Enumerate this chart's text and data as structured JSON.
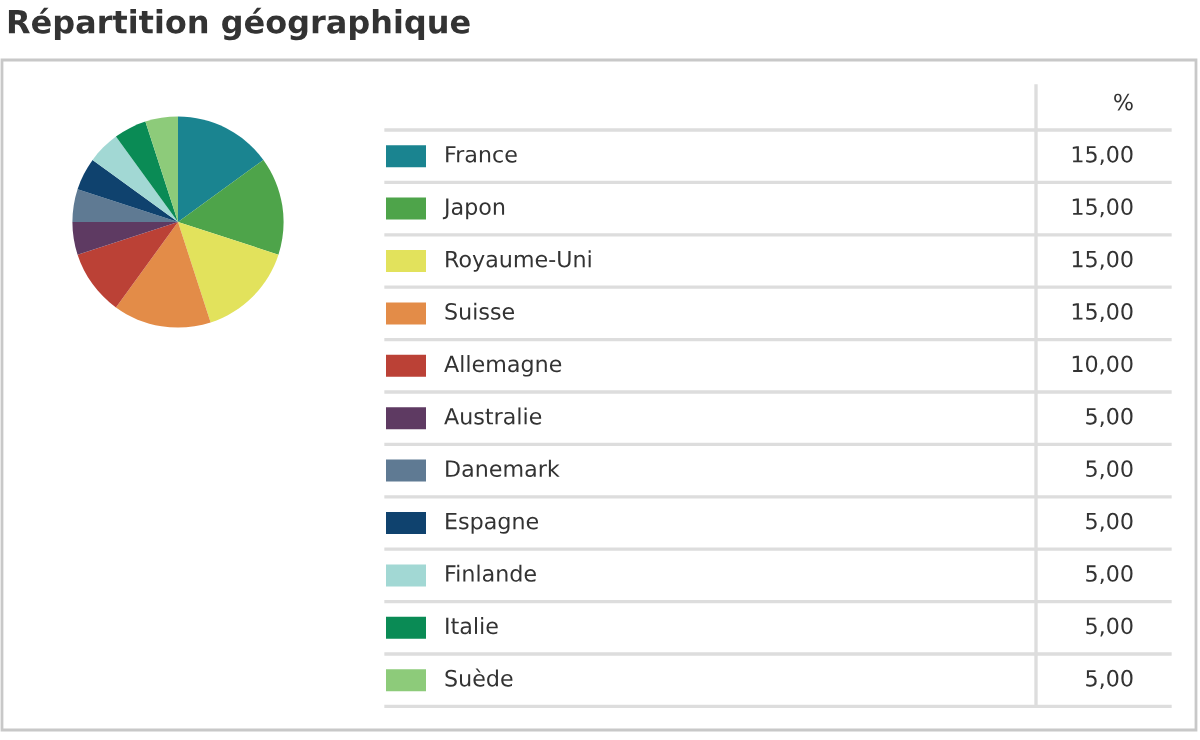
{
  "chart_data": {
    "type": "pie",
    "title": "Répartition géographique",
    "legend_title": "%",
    "categories": [
      "France",
      "Japon",
      "Royaume-Uni",
      "Suisse",
      "Allemagne",
      "Australie",
      "Danemark",
      "Espagne",
      "Finlande",
      "Italie",
      "Suède"
    ],
    "values": [
      15,
      15,
      15,
      15,
      10,
      5,
      5,
      5,
      5,
      5,
      5
    ],
    "value_labels": [
      "15,00",
      "15,00",
      "15,00",
      "15,00",
      "10,00",
      "5,00",
      "5,00",
      "5,00",
      "5,00",
      "5,00",
      "5,00"
    ],
    "colors": [
      "#1a8490",
      "#4ea44a",
      "#e2e25c",
      "#e38c48",
      "#bb4136",
      "#5e3a62",
      "#5f7a93",
      "#0f426e",
      "#a2d8d4",
      "#0a8b55",
      "#8dcb7a"
    ],
    "legend": "right"
  }
}
